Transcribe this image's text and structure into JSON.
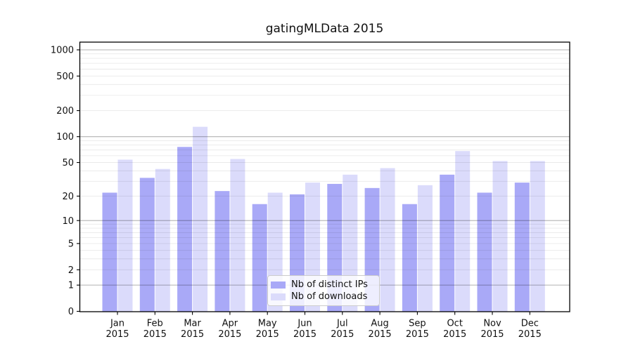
{
  "figure": {
    "title": "gatingMLData 2015"
  },
  "chart_data": {
    "type": "bar",
    "title": "gatingMLData 2015",
    "categories": [
      "Jan",
      "Feb",
      "Mar",
      "Apr",
      "May",
      "Jun",
      "Jul",
      "Aug",
      "Sep",
      "Oct",
      "Nov",
      "Dec"
    ],
    "category_year": "2015",
    "series": [
      {
        "name": "Nb of distinct IPs",
        "color": "#a9a9f7",
        "values": [
          22,
          33,
          76,
          23,
          16,
          21,
          28,
          25,
          16,
          36,
          22,
          29
        ]
      },
      {
        "name": "Nb of downloads",
        "color": "#dbdbfb",
        "values": [
          54,
          42,
          130,
          55,
          22,
          29,
          36,
          43,
          27,
          68,
          52,
          52
        ]
      }
    ],
    "y_ticks": [
      0,
      1,
      2,
      5,
      10,
      20,
      50,
      100,
      200,
      500,
      1000
    ],
    "y_scale": "log10(1+y)",
    "ylim": [
      0,
      1180
    ],
    "grid": true,
    "legend_position": "lower center",
    "axis_color": "#000000",
    "major_grid_color": "rgba(0,0,0,0.30)",
    "minor_grid_color": "rgba(0,0,0,0.085)"
  }
}
